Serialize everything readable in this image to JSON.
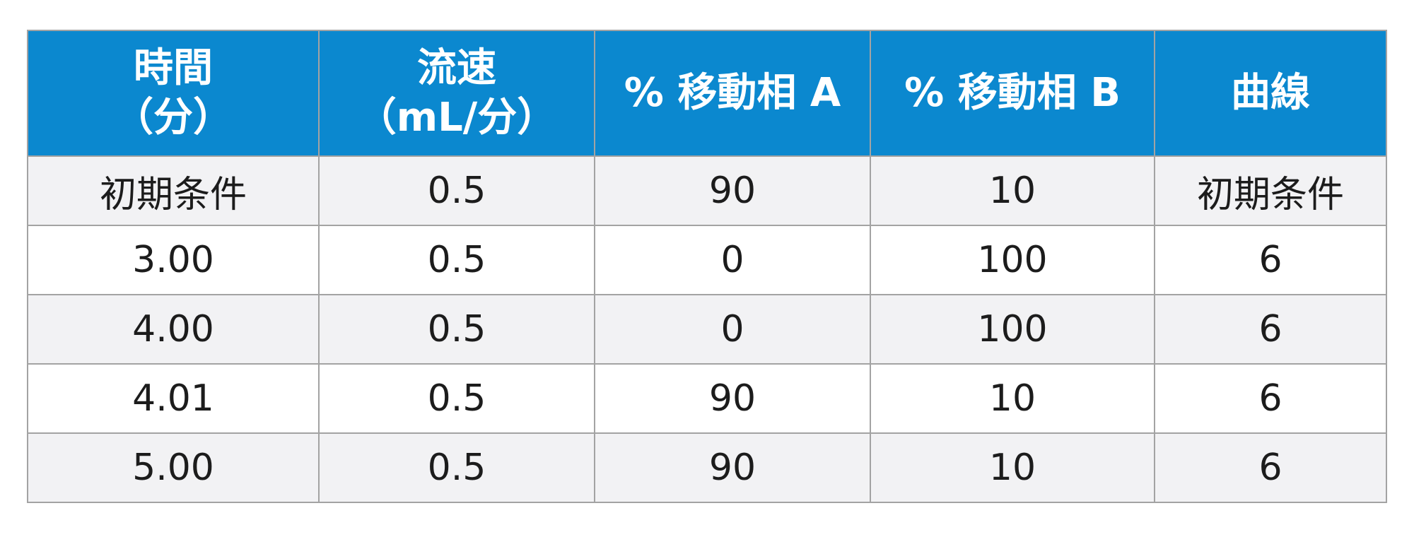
{
  "table": {
    "headers": [
      [
        "時間",
        "（分）"
      ],
      [
        "流速",
        "（mL/分）"
      ],
      [
        "% 移動相 A"
      ],
      [
        "% 移動相 B"
      ],
      [
        "曲線"
      ]
    ],
    "rows": [
      [
        "初期条件",
        "0.5",
        "90",
        "10",
        "初期条件"
      ],
      [
        "3.00",
        "0.5",
        "0",
        "100",
        "6"
      ],
      [
        "4.00",
        "0.5",
        "0",
        "100",
        "6"
      ],
      [
        "4.01",
        "0.5",
        "90",
        "10",
        "6"
      ],
      [
        "5.00",
        "0.5",
        "90",
        "10",
        "6"
      ]
    ]
  },
  "colors": {
    "header_bg": "#0b88cf",
    "header_text": "#ffffff",
    "row_alt_bg": "#f2f2f4",
    "border": "#a3a3a3"
  }
}
